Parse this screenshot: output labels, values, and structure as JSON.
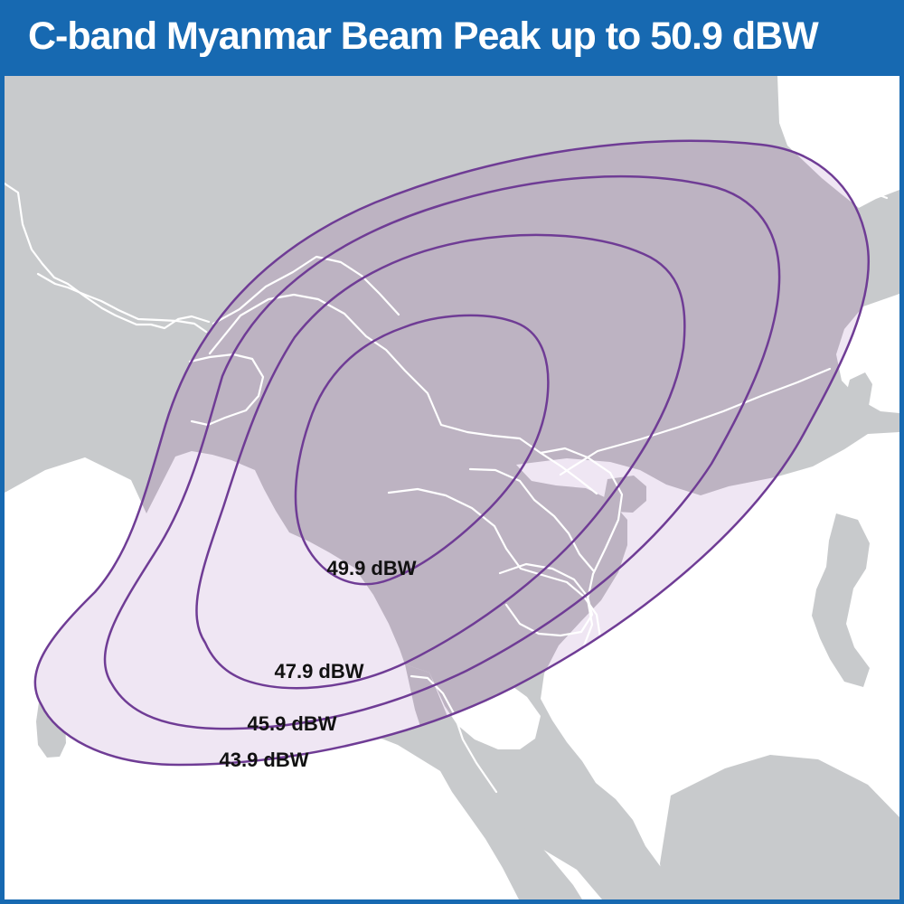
{
  "title": "C-band Myanmar Beam Peak up to 50.9 dBW",
  "map": {
    "colors": {
      "header": "#1769b1",
      "water": "#ffffff",
      "land": "#c8cacc",
      "border": "#ffffff",
      "outer_fill": "#efe6f3",
      "inner_fill": "#bdb3c2",
      "contour_stroke": "#6f3c95"
    },
    "contours": [
      {
        "label": "43.9 dBW"
      },
      {
        "label": "45.9 dBW"
      },
      {
        "label": "47.9 dBW"
      },
      {
        "label": "49.9 dBW"
      }
    ]
  }
}
